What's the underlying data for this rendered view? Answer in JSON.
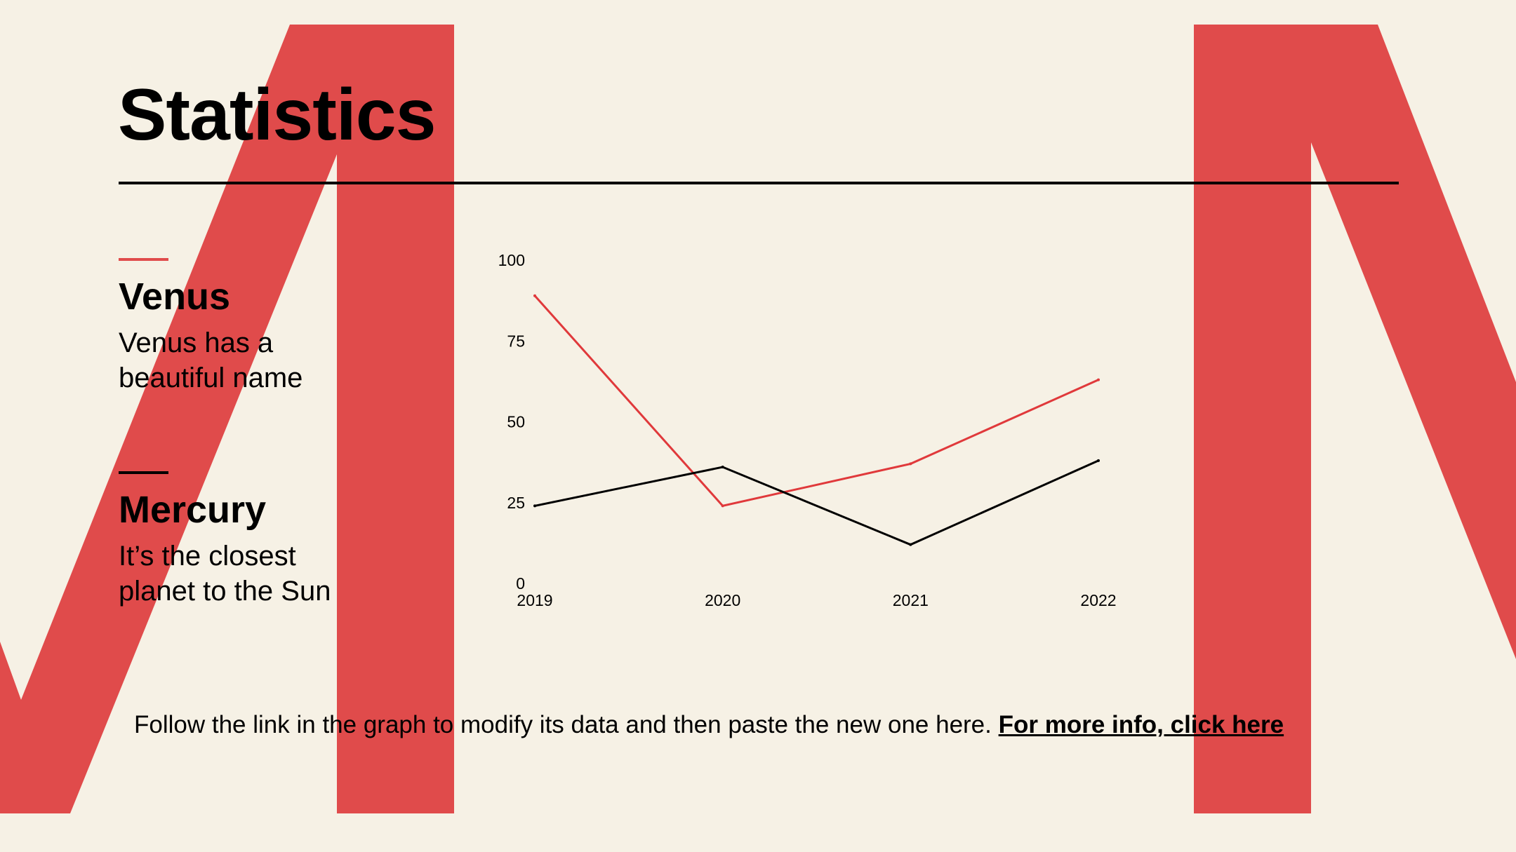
{
  "slide": {
    "title": "Statistics",
    "footer_text": "Follow the link in the graph to modify its data and then paste the new one here.",
    "footer_link": "For more info, click here"
  },
  "legend": [
    {
      "name": "Venus",
      "description_line1": "Venus has a",
      "description_line2": "beautiful name",
      "color": "#e04b4b"
    },
    {
      "name": "Mercury",
      "description_line1": "It’s the closest",
      "description_line2": "planet to the Sun",
      "color": "#000000"
    }
  ],
  "colors": {
    "background": "#f6f1e5",
    "accent": "#e04b4b",
    "venus_line": "#e0393b",
    "mercury_line": "#000000"
  },
  "chart_data": {
    "type": "line",
    "x": [
      "2019",
      "2020",
      "2021",
      "2022"
    ],
    "series": [
      {
        "name": "Venus",
        "values": [
          89,
          24,
          37,
          63
        ]
      },
      {
        "name": "Mercury",
        "values": [
          24,
          36,
          12,
          38
        ]
      }
    ],
    "yticks": [
      0,
      25,
      50,
      75,
      100
    ],
    "ylim": [
      0,
      100
    ],
    "grid": false,
    "legend_position": "left"
  }
}
